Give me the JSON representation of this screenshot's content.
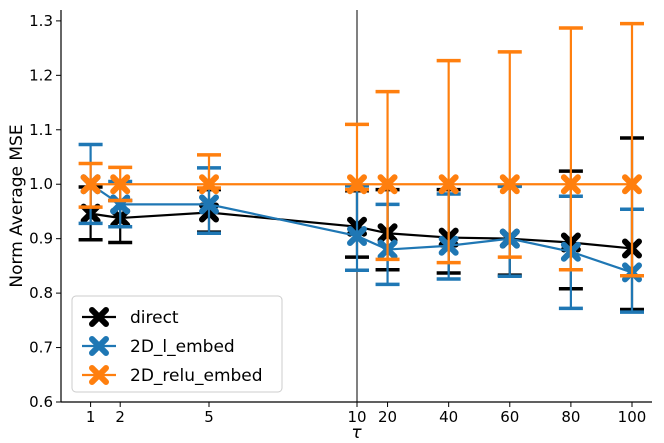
{
  "chart_data": {
    "type": "line",
    "title": "",
    "xlabel": "τ",
    "ylabel": "Norm Average MSE",
    "ylim": [
      0.6,
      1.32
    ],
    "y_ticks": [
      0.6,
      0.7,
      0.8,
      0.9,
      1.0,
      1.1,
      1.2,
      1.3
    ],
    "y_tick_labels": [
      "0.6",
      "0.7",
      "0.8",
      "0.9",
      "1.0",
      "1.1",
      "1.2",
      "1.3"
    ],
    "x_ticks": [
      1,
      2,
      5,
      10,
      20,
      40,
      60,
      80,
      100
    ],
    "x_tick_labels": [
      "1",
      "2",
      "5",
      "10",
      "20",
      "40",
      "60",
      "80",
      "100"
    ],
    "x_scale_note": "linear from 0 to 10, then linear from 10 to 100 (split axis at 10)",
    "vertical_line_at": 10,
    "grid": false,
    "legend_position": "lower-left",
    "series": [
      {
        "name": "direct",
        "color": "#000000",
        "x": [
          1,
          2,
          5,
          10,
          20,
          40,
          60,
          80,
          100
        ],
        "values": [
          0.946,
          0.938,
          0.948,
          0.922,
          0.91,
          0.902,
          0.9,
          0.893,
          0.882
        ],
        "err_low": [
          0.898,
          0.893,
          0.912,
          0.866,
          0.843,
          0.837,
          0.833,
          0.808,
          0.77
        ],
        "err_high": [
          0.995,
          0.97,
          0.99,
          0.988,
          0.99,
          0.99,
          0.997,
          1.024,
          1.085
        ]
      },
      {
        "name": "2D_l_embed",
        "color": "#1f77b4",
        "x": [
          1,
          2,
          5,
          10,
          20,
          40,
          60,
          80,
          100
        ],
        "values": [
          1.0,
          0.963,
          0.963,
          0.905,
          0.88,
          0.887,
          0.9,
          0.876,
          0.838
        ],
        "err_low": [
          0.928,
          0.922,
          0.91,
          0.842,
          0.816,
          0.826,
          0.831,
          0.772,
          0.765
        ],
        "err_high": [
          1.073,
          1.005,
          1.03,
          0.997,
          0.963,
          0.982,
          0.996,
          0.978,
          0.954
        ]
      },
      {
        "name": "2D_relu_embed",
        "color": "#ff7f0e",
        "x": [
          1,
          2,
          5,
          10,
          20,
          40,
          60,
          80,
          100
        ],
        "values": [
          1.0,
          1.0,
          1.0,
          1.0,
          1.0,
          1.0,
          1.0,
          1.0,
          1.0
        ],
        "err_low": [
          0.958,
          0.97,
          0.993,
          0.99,
          0.862,
          0.856,
          0.866,
          0.843,
          0.832
        ],
        "err_high": [
          1.038,
          1.031,
          1.054,
          1.11,
          1.17,
          1.227,
          1.243,
          1.287,
          1.295
        ]
      }
    ]
  }
}
